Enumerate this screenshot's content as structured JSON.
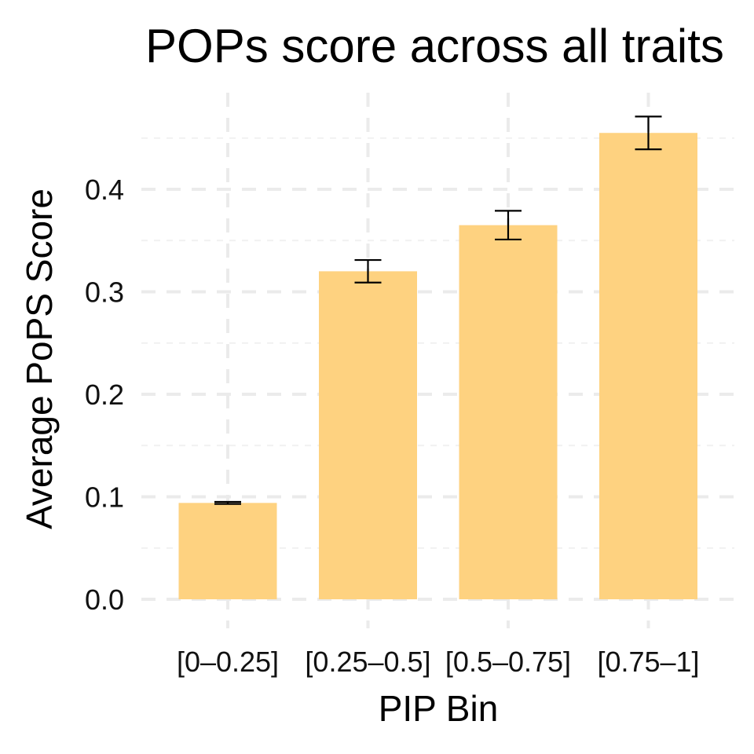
{
  "chart_data": {
    "type": "bar",
    "title": "POPs score across all traits",
    "xlabel": "PIP Bin",
    "ylabel": "Average PoPS Score",
    "categories": [
      "[0–0.25]",
      "[0.25–0.5]",
      "[0.5–0.75]",
      "[0.75–1]"
    ],
    "values": [
      0.094,
      0.32,
      0.365,
      0.455
    ],
    "error_lower": [
      0.093,
      0.309,
      0.351,
      0.439
    ],
    "error_upper": [
      0.095,
      0.331,
      0.379,
      0.471
    ],
    "ylim": [
      0,
      0.48
    ],
    "yticks": [
      "0.0",
      "0.1",
      "0.2",
      "0.3",
      "0.4"
    ],
    "ytick_values": [
      0,
      0.1,
      0.2,
      0.3,
      0.4
    ],
    "grid": true,
    "legend": "none",
    "colors": {
      "bar": "#FED280",
      "error_bar": "#000000",
      "grid": "#EBEBEB"
    }
  }
}
